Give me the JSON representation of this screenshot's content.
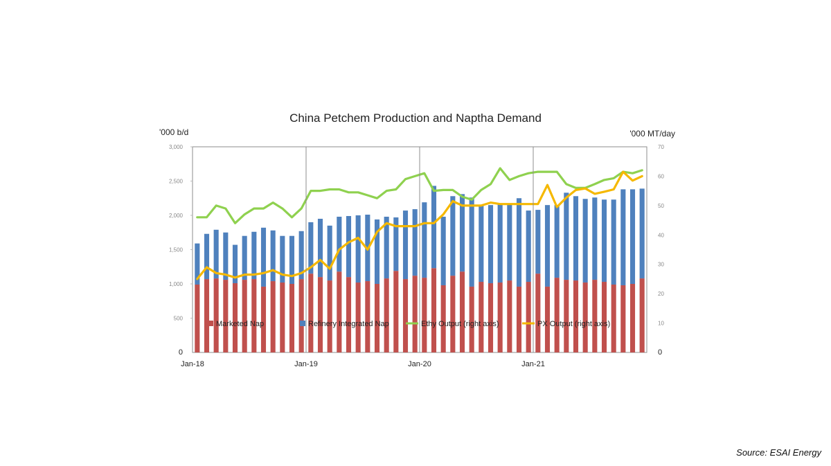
{
  "chart_data": {
    "type": "bar",
    "title": "China Petchem Production and Naptha Demand",
    "ylabel": "'000 b/d",
    "y2label": "'000 MT/day",
    "ylim": [
      0,
      3000
    ],
    "y2lim": [
      0,
      70
    ],
    "y_ticks": [
      "0",
      "500",
      "1,000",
      "1,500",
      "2,000",
      "2,500",
      "3,000"
    ],
    "y2_ticks": [
      "0",
      "10",
      "20",
      "30",
      "40",
      "50",
      "60",
      "70"
    ],
    "x_tick_labels": [
      "Jan-18",
      "Jan-19",
      "Jan-20",
      "Jan-21"
    ],
    "x": [
      "Jan-18",
      "Feb-18",
      "Mar-18",
      "Apr-18",
      "May-18",
      "Jun-18",
      "Jul-18",
      "Aug-18",
      "Sep-18",
      "Oct-18",
      "Nov-18",
      "Dec-18",
      "Jan-19",
      "Feb-19",
      "Mar-19",
      "Apr-19",
      "May-19",
      "Jun-19",
      "Jul-19",
      "Aug-19",
      "Sep-19",
      "Oct-19",
      "Nov-19",
      "Dec-19",
      "Jan-20",
      "Feb-20",
      "Mar-20",
      "Apr-20",
      "May-20",
      "Jun-20",
      "Jul-20",
      "Aug-20",
      "Sep-20",
      "Oct-20",
      "Nov-20",
      "Dec-20",
      "Jan-21",
      "Feb-21",
      "Mar-21",
      "Apr-21",
      "May-21",
      "Jun-21",
      "Jul-21",
      "Aug-21",
      "Sep-21",
      "Oct-21",
      "Nov-21",
      "Dec-21"
    ],
    "stacked": true,
    "grid": false,
    "legend_position": "bottom-inside",
    "series": [
      {
        "name": "Marketed Nap",
        "kind": "bar",
        "axis": "left",
        "color": "#c0504d",
        "values": [
          990,
          1070,
          1080,
          1060,
          1010,
          1060,
          1070,
          960,
          1040,
          1020,
          1000,
          1070,
          1150,
          1100,
          1050,
          1180,
          1100,
          1020,
          1040,
          1000,
          1080,
          1190,
          1070,
          1120,
          1090,
          1230,
          980,
          1120,
          1180,
          960,
          1030,
          1010,
          1020,
          1050,
          960,
          1030,
          1150,
          960,
          1090,
          1060,
          1050,
          1020,
          1060,
          1030,
          990,
          980,
          1000,
          1080
        ]
      },
      {
        "name": "Refinery Integrated Nap",
        "kind": "bar",
        "axis": "left",
        "color": "#4f81bd",
        "values": [
          600,
          660,
          710,
          690,
          560,
          640,
          690,
          860,
          740,
          680,
          700,
          700,
          750,
          850,
          800,
          800,
          890,
          980,
          970,
          940,
          900,
          780,
          1000,
          970,
          1100,
          1200,
          1000,
          1160,
          1130,
          1300,
          1120,
          1140,
          1140,
          1120,
          1290,
          1040,
          930,
          1190,
          1060,
          1270,
          1230,
          1220,
          1200,
          1200,
          1240,
          1400,
          1380,
          1310
        ]
      },
      {
        "name": "Ethy Output (right axis)",
        "kind": "line",
        "axis": "right",
        "color": "#8fd14f",
        "values": [
          46,
          46,
          50,
          49,
          44,
          47,
          49,
          49,
          51,
          49,
          46,
          49,
          55,
          55,
          55.5,
          55.5,
          54.5,
          54.5,
          53.5,
          52.5,
          55,
          55.5,
          59,
          60,
          61,
          55,
          55.3,
          55.3,
          53,
          52,
          55.3,
          57.3,
          62.7,
          58.7,
          60,
          61,
          61.5,
          61.5,
          61.5,
          57.3,
          56,
          56,
          57.3,
          58.7,
          59.3,
          61.5,
          61,
          62
        ]
      },
      {
        "name": "PX Output (right axis)",
        "kind": "line",
        "axis": "right",
        "color": "#f5b800",
        "values": [
          25,
          29,
          27,
          26.5,
          25.5,
          26.5,
          26.5,
          27,
          28,
          26.5,
          26,
          27,
          29,
          31.5,
          28.5,
          35,
          37.5,
          39,
          35,
          41,
          44,
          43,
          43,
          43,
          44,
          44,
          47,
          51.5,
          50,
          50,
          50,
          51,
          50.5,
          50.5,
          50.5,
          50.5,
          50.5,
          57,
          49.5,
          52.7,
          55.3,
          55.8,
          54,
          54.7,
          55.5,
          61.5,
          58.5,
          60
        ]
      }
    ]
  },
  "source": "Source: ESAI Energy"
}
